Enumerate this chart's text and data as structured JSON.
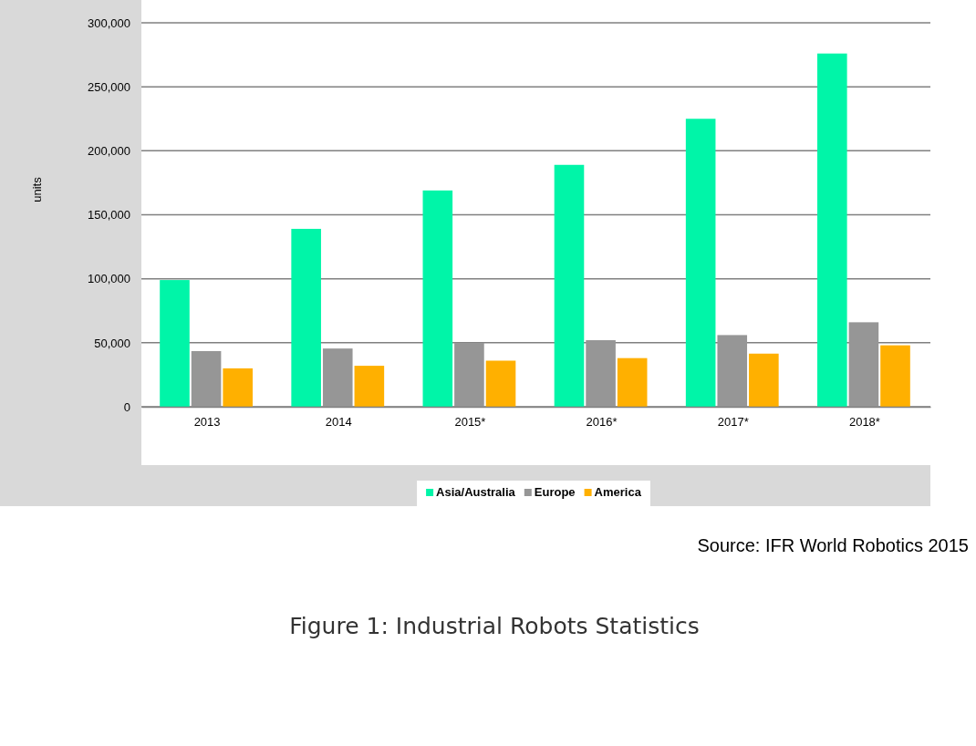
{
  "chart_data": {
    "type": "bar",
    "title": "Figure 1: Industrial Robots Statistics",
    "ylabel": "units",
    "categories": [
      "2013",
      "2014",
      "2015*",
      "2016*",
      "2017*",
      "2018*"
    ],
    "series": [
      {
        "name": "Asia/Australia",
        "color": "#00f5a8",
        "values": [
          99000,
          139000,
          169000,
          189000,
          225000,
          276000
        ]
      },
      {
        "name": "Europe",
        "color": "#969696",
        "values": [
          43500,
          45500,
          50000,
          52000,
          56000,
          66000
        ]
      },
      {
        "name": "America",
        "color": "#ffb000",
        "values": [
          30000,
          32000,
          36000,
          38000,
          41500,
          48000
        ]
      }
    ],
    "ylim": [
      0,
      300000
    ],
    "yticks": [
      {
        "value": 0,
        "label": "0"
      },
      {
        "value": 50000,
        "label": "50,000"
      },
      {
        "value": 100000,
        "label": "100,000"
      },
      {
        "value": 150000,
        "label": "150,000"
      },
      {
        "value": 200000,
        "label": "200,000"
      },
      {
        "value": 250000,
        "label": "250,000"
      },
      {
        "value": 300000,
        "label": "300,000"
      }
    ],
    "grid": "y",
    "legend": "bottom",
    "annotations": [
      "Source: IFR World Robotics 2015"
    ]
  }
}
